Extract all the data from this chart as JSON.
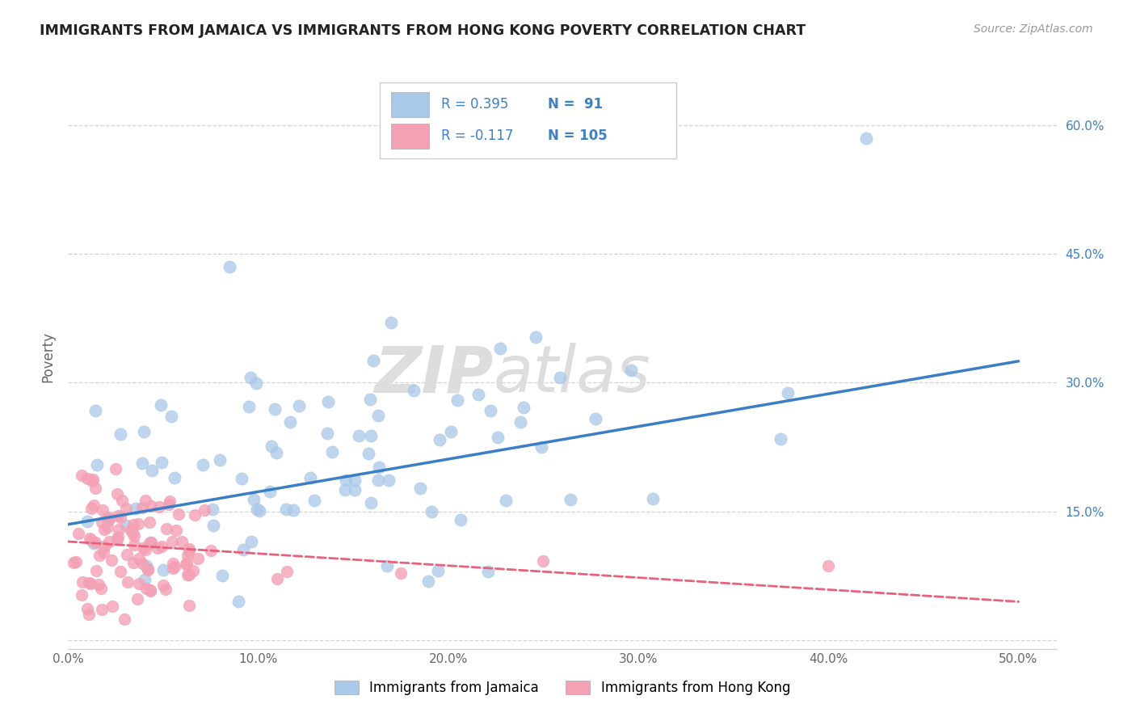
{
  "title": "IMMIGRANTS FROM JAMAICA VS IMMIGRANTS FROM HONG KONG POVERTY CORRELATION CHART",
  "source": "Source: ZipAtlas.com",
  "ylabel": "Poverty",
  "xlim": [
    0.0,
    0.52
  ],
  "ylim": [
    -0.01,
    0.67
  ],
  "xticks": [
    0.0,
    0.1,
    0.2,
    0.3,
    0.4,
    0.5
  ],
  "xtick_labels": [
    "0.0%",
    "10.0%",
    "20.0%",
    "30.0%",
    "40.0%",
    "50.0%"
  ],
  "yticks": [
    0.0,
    0.15,
    0.3,
    0.45,
    0.6
  ],
  "ytick_labels_right": [
    "",
    "15.0%",
    "30.0%",
    "45.0%",
    "60.0%"
  ],
  "jamaica_color": "#aac8e8",
  "hongkong_color": "#f4a0b5",
  "jamaica_line_color": "#3a7ec6",
  "hongkong_line_color": "#e8607a",
  "R_jamaica": 0.395,
  "N_jamaica": 91,
  "R_hongkong": -0.117,
  "N_hongkong": 105,
  "legend_label_jamaica": "Immigrants from Jamaica",
  "legend_label_hongkong": "Immigrants from Hong Kong",
  "background_color": "#ffffff",
  "grid_color": "#c8c8c8",
  "jamaica_trend_x0": 0.0,
  "jamaica_trend_y0": 0.135,
  "jamaica_trend_x1": 0.5,
  "jamaica_trend_y1": 0.325,
  "hongkong_trend_x0": 0.0,
  "hongkong_trend_y0": 0.115,
  "hongkong_trend_x1": 0.5,
  "hongkong_trend_y1": 0.045
}
